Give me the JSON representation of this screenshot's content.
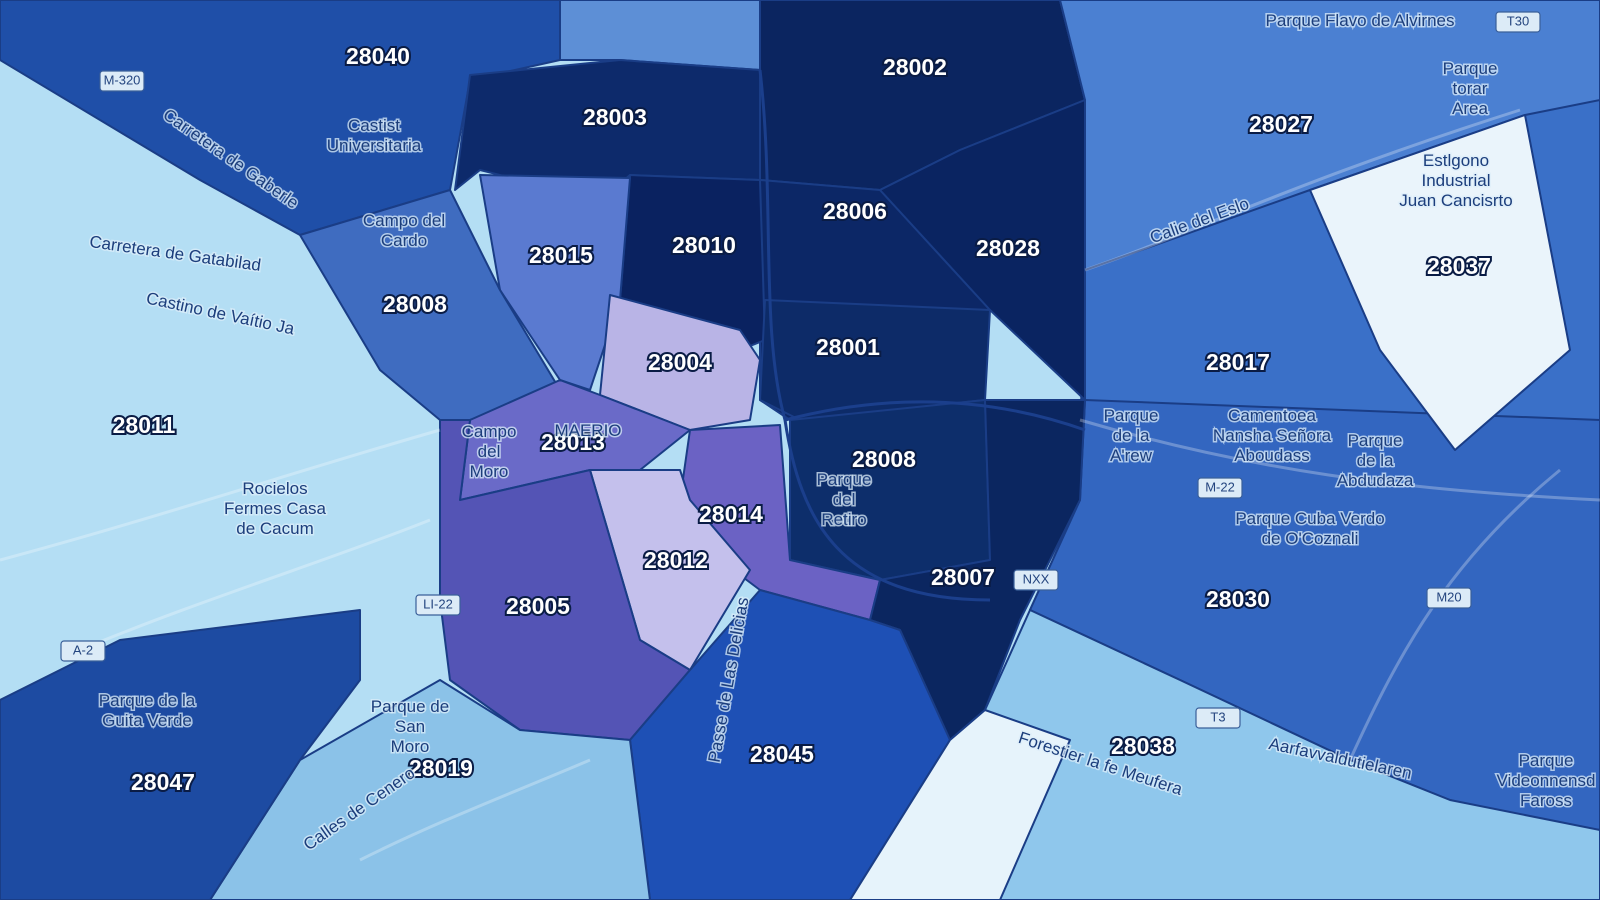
{
  "postal_codes": [
    "28040",
    "28003",
    "28002",
    "28027",
    "28006",
    "28010",
    "28015",
    "28028",
    "28037",
    "28008",
    "28004",
    "28001",
    "28017",
    "28011",
    "28013",
    "28008",
    "28014",
    "28012",
    "28007",
    "28005",
    "28030",
    "28038",
    "28045",
    "28019",
    "28047"
  ],
  "places": [
    [
      "Castist",
      "Universitaria"
    ],
    [
      "Campo del",
      "Cardo"
    ],
    [
      "Carretera de Gatabilad"
    ],
    [
      "Castino de Vaítio Ja"
    ],
    [
      "Rocielos",
      "Fermes Casa",
      "de Cacum"
    ],
    [
      "Campo",
      "del",
      "Moro"
    ],
    [
      "MAERIO"
    ],
    [
      "Parque",
      "del",
      "Retiro"
    ],
    [
      "Parque de la",
      "Guita Verde"
    ],
    [
      "Parque de",
      "San",
      "Moro"
    ],
    [
      "Parque Flavo de Alvirnes"
    ],
    [
      "Parque",
      "torar",
      "Area"
    ],
    [
      "Estlgono",
      "Industrial",
      "Juan Cancisrto"
    ],
    [
      "Calie del Eslo"
    ],
    [
      "Parque",
      "de la",
      "A'rew"
    ],
    [
      "Camentoea",
      "Nansha Señora",
      "Aboudass"
    ],
    [
      "Parque",
      "de la",
      "Abdudaza"
    ],
    [
      "Parque Cuba Verdo",
      "de O'Coznali"
    ],
    [
      "Parque",
      "Videonnensd",
      "Faross"
    ],
    [
      "Carretera de Gaberle"
    ],
    [
      "Passe de Las Delicias"
    ],
    [
      "Calles de Cenero"
    ],
    [
      "Forestier la fe Meufera"
    ],
    [
      "Aarfavvaldutielaren"
    ]
  ],
  "roads": [
    "M-320",
    "A-2",
    "LI-22",
    "M-22",
    "M20",
    "T30",
    "T3",
    "NXX"
  ]
}
